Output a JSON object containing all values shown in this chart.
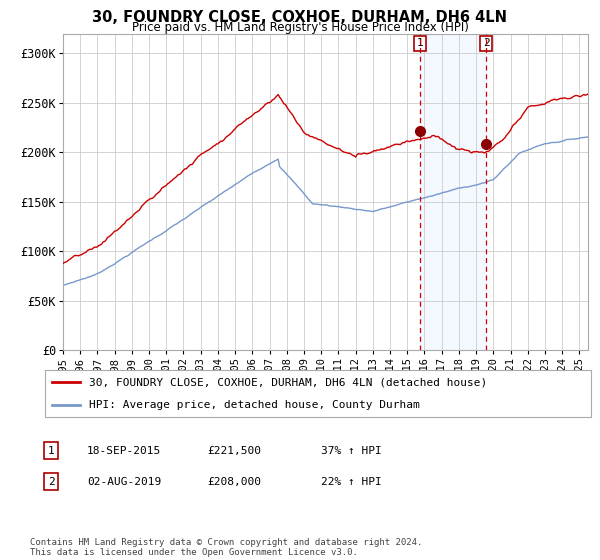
{
  "title": "30, FOUNDRY CLOSE, COXHOE, DURHAM, DH6 4LN",
  "subtitle": "Price paid vs. HM Land Registry's House Price Index (HPI)",
  "legend_line1": "30, FOUNDRY CLOSE, COXHOE, DURHAM, DH6 4LN (detached house)",
  "legend_line2": "HPI: Average price, detached house, County Durham",
  "transaction1_label": "1",
  "transaction1_date": "18-SEP-2015",
  "transaction1_price": "£221,500",
  "transaction1_hpi": "37% ↑ HPI",
  "transaction1_x": 2015.72,
  "transaction1_y": 221500,
  "transaction2_label": "2",
  "transaction2_date": "02-AUG-2019",
  "transaction2_price": "£208,000",
  "transaction2_hpi": "22% ↑ HPI",
  "transaction2_x": 2019.58,
  "transaction2_y": 208000,
  "footer": "Contains HM Land Registry data © Crown copyright and database right 2024.\nThis data is licensed under the Open Government Licence v3.0.",
  "red_color": "#cc0000",
  "blue_color": "#7799cc",
  "highlight_color": "#ddeeff",
  "grid_color": "#cccccc",
  "background_color": "#ffffff",
  "ylim": [
    0,
    320000
  ],
  "xlim_start": 1995,
  "xlim_end": 2025.5
}
